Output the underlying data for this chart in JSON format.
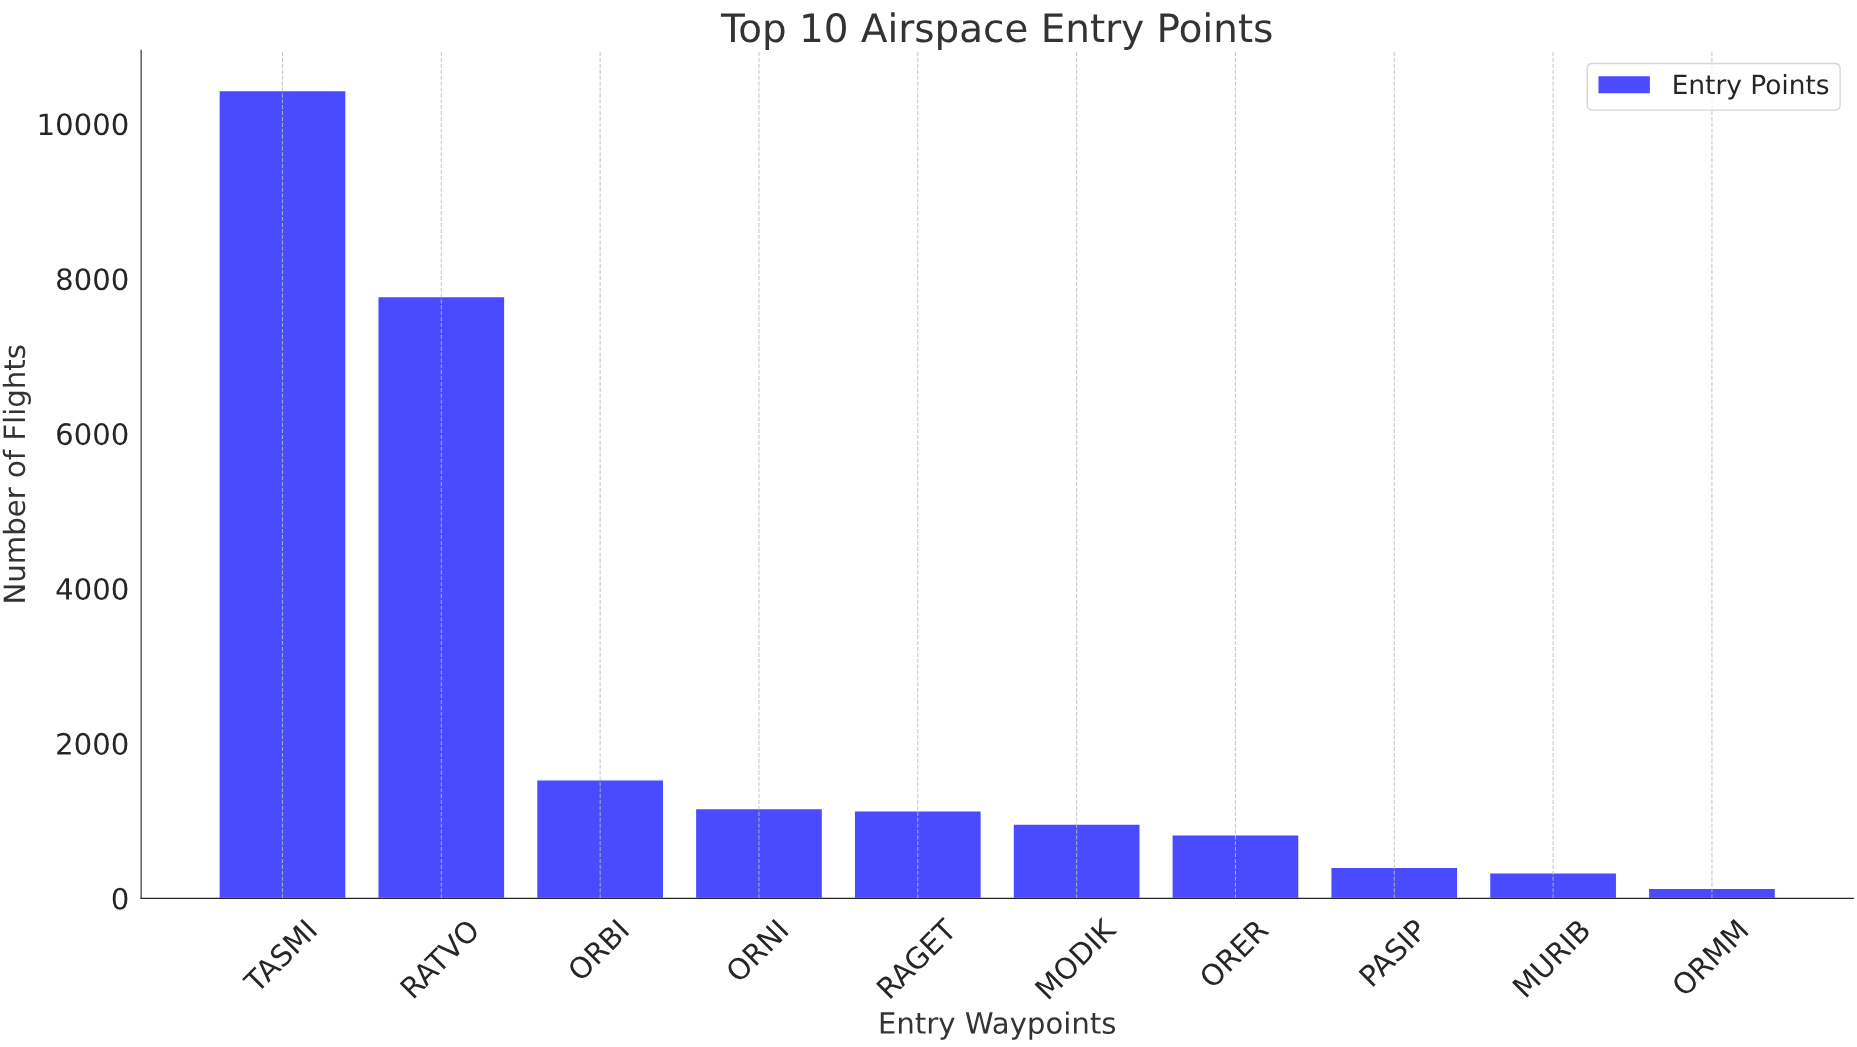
{
  "chart_data": {
    "type": "bar",
    "title": "Top 10 Airspace Entry Points",
    "xlabel": "Entry Waypoints",
    "ylabel": "Number of Flights",
    "categories": [
      "TASMI",
      "RATVO",
      "ORBI",
      "ORNI",
      "RAGET",
      "MODIK",
      "ORER",
      "PASIP",
      "MURIB",
      "ORMM"
    ],
    "series": [
      {
        "name": "Entry Points",
        "color": "#4a4aff",
        "values": [
          10430,
          7770,
          1530,
          1160,
          1130,
          960,
          820,
          400,
          330,
          130
        ]
      }
    ],
    "ylim": [
      0,
      10950
    ],
    "yticks": [
      0,
      2000,
      4000,
      6000,
      8000,
      10000
    ],
    "grid": "x",
    "legend": "top right"
  }
}
